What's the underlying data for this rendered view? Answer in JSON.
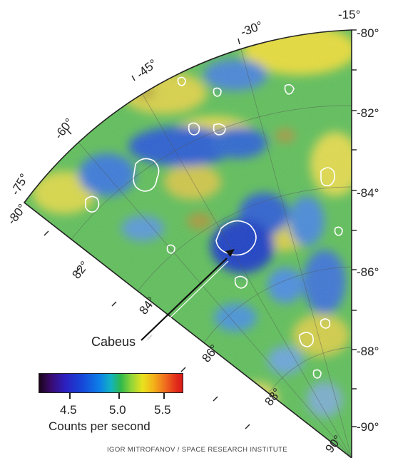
{
  "map": {
    "meridians": [
      "-15°",
      "-30°",
      "-45°",
      "-60°",
      "-75°"
    ],
    "parallels_right": [
      "-80°",
      "-82°",
      "-84°",
      "-86°",
      "-88°",
      "-90°"
    ],
    "parallels_edge": [
      "-80°",
      "82°",
      "84°",
      "86°",
      "88°",
      "90°"
    ],
    "crater_label": "Cabeus"
  },
  "legend": {
    "title": "Counts per second",
    "ticks": [
      "4.5",
      "5.0",
      "5.5"
    ]
  },
  "credit": "IGOR MITROFANOV / SPACE RESEARCH INSTITUTE",
  "colors": {
    "low": "#2c1fbf",
    "mid": "#2fb84a",
    "high": "#e9e21e",
    "max": "#d81b1b"
  }
}
